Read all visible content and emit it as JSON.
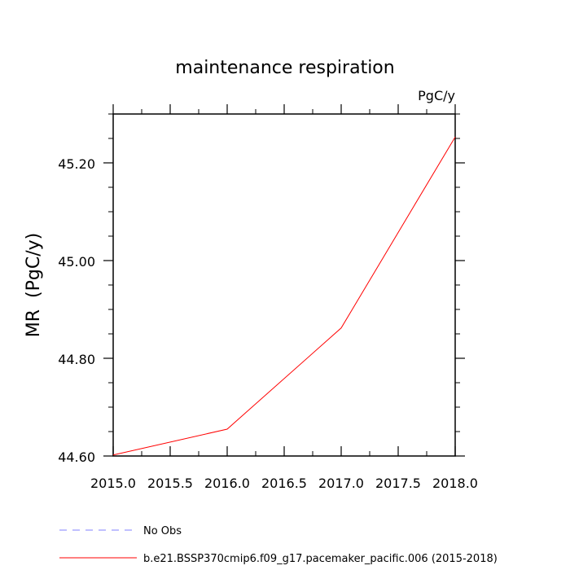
{
  "chart_data": {
    "type": "line",
    "title": "maintenance respiration",
    "units_label": "PgC/y",
    "ylabel": "MR  (PgC/y)",
    "xlabel": "",
    "xlim": [
      2015.0,
      2018.0
    ],
    "ylim": [
      44.6,
      45.3
    ],
    "x_ticks": [
      2015.0,
      2015.5,
      2016.0,
      2016.5,
      2017.0,
      2017.5,
      2018.0
    ],
    "x_tick_labels": [
      "2015.0",
      "2015.5",
      "2016.0",
      "2016.5",
      "2017.0",
      "2017.5",
      "2018.0"
    ],
    "y_ticks": [
      44.6,
      44.8,
      45.0,
      45.2
    ],
    "y_tick_labels": [
      "44.60",
      "44.80",
      "45.00",
      "45.20"
    ],
    "y_minor_step": 0.05,
    "x_minor_step": 0.25,
    "grid": false,
    "legend_placement": "bottom-left",
    "series": [
      {
        "name": "No Obs",
        "color": "#8080ff",
        "dash": "dashed",
        "x": [],
        "y": []
      },
      {
        "name": "b.e21.BSSP370cmip6.f09_g17.pacemaker_pacific.006 (2015-2018)",
        "color": "#ff0000",
        "dash": "solid",
        "x": [
          2015,
          2016,
          2017,
          2018
        ],
        "y": [
          44.602,
          44.655,
          44.862,
          45.253
        ]
      }
    ]
  }
}
